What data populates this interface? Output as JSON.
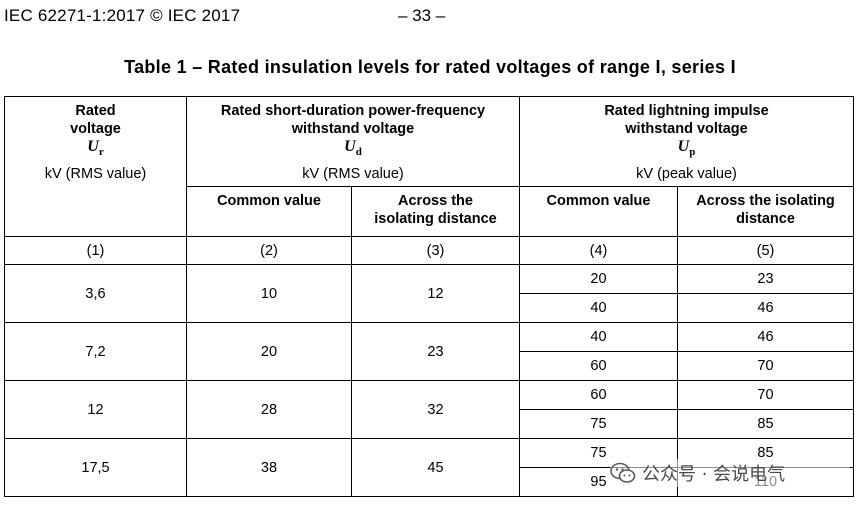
{
  "header": {
    "standard": "IEC 62271-1:2017 © IEC 2017",
    "page": "– 33 –"
  },
  "caption": "Table 1 – Rated insulation levels for rated voltages of range I, series I",
  "table": {
    "col1": {
      "line1": "Rated",
      "line2": "voltage",
      "symbol": "U",
      "sub": "r",
      "unit": "kV (RMS value)"
    },
    "col23": {
      "line1": "Rated short-duration power-frequency",
      "line2": "withstand voltage",
      "symbol": "U",
      "sub": "d",
      "unit": "kV (RMS value)"
    },
    "col45": {
      "line1": "Rated lightning impulse",
      "line2": "withstand voltage",
      "symbol": "U",
      "sub": "p",
      "unit": "kV (peak value)"
    },
    "sub_common_d": "Common value",
    "sub_across_d_1": "Across the",
    "sub_across_d_2": "isolating distance",
    "sub_common_p": "Common value",
    "sub_across_p_1": "Across the isolating",
    "sub_across_p_2": "distance",
    "col_numbers": [
      "(1)",
      "(2)",
      "(3)",
      "(4)",
      "(5)"
    ],
    "rows": [
      {
        "ur": "3,6",
        "ud_common": "10",
        "ud_across": "12",
        "up": [
          [
            "20",
            "23"
          ],
          [
            "40",
            "46"
          ]
        ]
      },
      {
        "ur": "7,2",
        "ud_common": "20",
        "ud_across": "23",
        "up": [
          [
            "40",
            "46"
          ],
          [
            "60",
            "70"
          ]
        ]
      },
      {
        "ur": "12",
        "ud_common": "28",
        "ud_across": "32",
        "up": [
          [
            "60",
            "70"
          ],
          [
            "75",
            "85"
          ]
        ]
      },
      {
        "ur": "17,5",
        "ud_common": "38",
        "ud_across": "45",
        "up": [
          [
            "75",
            "85"
          ],
          [
            "95",
            "110"
          ]
        ]
      }
    ]
  },
  "watermark": {
    "text": "公众号 · 会说电气",
    "icon": "wechat-icon"
  }
}
